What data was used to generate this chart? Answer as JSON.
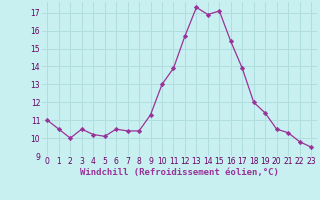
{
  "x": [
    0,
    1,
    2,
    3,
    4,
    5,
    6,
    7,
    8,
    9,
    10,
    11,
    12,
    13,
    14,
    15,
    16,
    17,
    18,
    19,
    20,
    21,
    22,
    23
  ],
  "y": [
    11.0,
    10.5,
    10.0,
    10.5,
    10.2,
    10.1,
    10.5,
    10.4,
    10.4,
    11.3,
    13.0,
    13.9,
    15.7,
    17.3,
    16.9,
    17.1,
    15.4,
    13.9,
    12.0,
    11.4,
    10.5,
    10.3,
    9.8,
    9.5
  ],
  "bg_color": "#c8f0f0",
  "grid_color": "#b0dede",
  "line_color": "#993399",
  "marker_color": "#993399",
  "xlabel": "Windchill (Refroidissement éolien,°C)",
  "ylim": [
    9.0,
    17.6
  ],
  "xlim": [
    -0.5,
    23.5
  ],
  "yticks": [
    9,
    10,
    11,
    12,
    13,
    14,
    15,
    16,
    17
  ],
  "xticks": [
    0,
    1,
    2,
    3,
    4,
    5,
    6,
    7,
    8,
    9,
    10,
    11,
    12,
    13,
    14,
    15,
    16,
    17,
    18,
    19,
    20,
    21,
    22,
    23
  ],
  "tick_fontsize": 5.5,
  "label_fontsize": 6.5
}
